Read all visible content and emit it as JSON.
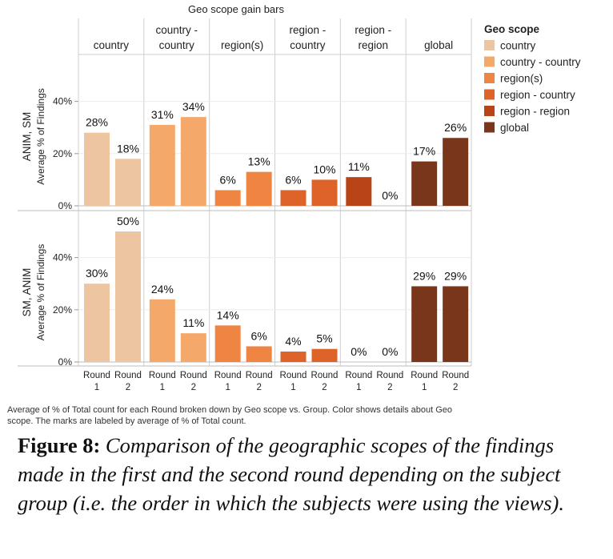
{
  "chart_data": {
    "type": "bar",
    "title": "Geo scope gain bars",
    "columns": [
      "country",
      "country - country",
      "region(s)",
      "region - country",
      "region - region",
      "global"
    ],
    "rows": [
      {
        "label": "ANIM, SM",
        "axis_title": "Average % of Findings"
      },
      {
        "label": "SM, ANIM",
        "axis_title": "Average % of Findings"
      }
    ],
    "categories": [
      "Round 1",
      "Round 2"
    ],
    "y_ticks": [
      "0%",
      "20%",
      "40%"
    ],
    "ylim": [
      0,
      55
    ],
    "series": [
      {
        "name": "country",
        "color": "#EDC5A0",
        "values": [
          [
            28,
            18
          ],
          [
            30,
            50
          ]
        ],
        "labels": [
          [
            "28%",
            "18%"
          ],
          [
            "30%",
            "50%"
          ]
        ]
      },
      {
        "name": "country - country",
        "color": "#F4A96B",
        "values": [
          [
            31,
            34
          ],
          [
            24,
            11
          ]
        ],
        "labels": [
          [
            "31%",
            "34%"
          ],
          [
            "24%",
            "11%"
          ]
        ]
      },
      {
        "name": "region(s)",
        "color": "#EE8543",
        "values": [
          [
            6,
            13
          ],
          [
            14,
            6
          ]
        ],
        "labels": [
          [
            "6%",
            "13%"
          ],
          [
            "14%",
            "6%"
          ]
        ]
      },
      {
        "name": "region - country",
        "color": "#DE6328",
        "values": [
          [
            6,
            10
          ],
          [
            4,
            5
          ]
        ],
        "labels": [
          [
            "6%",
            "10%"
          ],
          [
            "4%",
            "5%"
          ]
        ]
      },
      {
        "name": "region - region",
        "color": "#B84418",
        "values": [
          [
            11,
            0
          ],
          [
            0,
            0
          ]
        ],
        "labels": [
          [
            "11%",
            "0%"
          ],
          [
            "0%",
            "0%"
          ]
        ]
      },
      {
        "name": "global",
        "color": "#7A361A",
        "values": [
          [
            17,
            26
          ],
          [
            29,
            29
          ]
        ],
        "labels": [
          [
            "17%",
            "26%"
          ],
          [
            "29%",
            "29%"
          ]
        ]
      }
    ],
    "legend": {
      "title": "Geo scope",
      "position": "right"
    },
    "grid": true
  },
  "note": "Average of % of Total count for each Round broken down by Geo scope vs. Group.  Color shows details about Geo scope.  The marks are labeled by average of % of Total count.",
  "caption": {
    "label": "Figure 8:",
    "text": "Comparison of the geographic scopes of the findings made in the first and the second round depending on the subject group (i.e. the order in which the subjects were using the views)."
  }
}
